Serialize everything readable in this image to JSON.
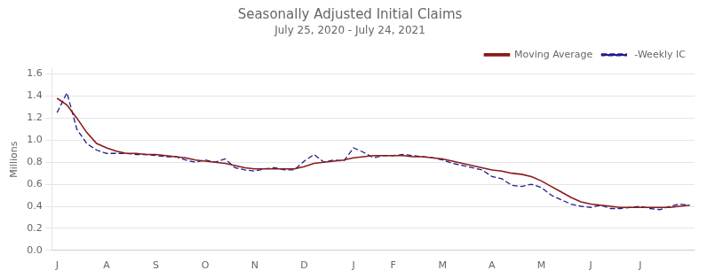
{
  "chart_data": {
    "type": "line",
    "title": "Seasonally Adjusted Initial Claims",
    "subtitle": "July 25, 2020 - July 24, 2021",
    "y_label": "Millions",
    "categories": [
      "J",
      null,
      null,
      null,
      null,
      "A",
      null,
      null,
      null,
      null,
      "S",
      null,
      null,
      null,
      null,
      "O",
      null,
      null,
      null,
      null,
      "N",
      null,
      null,
      null,
      null,
      "D",
      null,
      null,
      null,
      null,
      "J",
      null,
      null,
      null,
      "F",
      null,
      null,
      null,
      null,
      "M",
      null,
      null,
      null,
      null,
      "A",
      null,
      null,
      null,
      null,
      "M",
      null,
      null,
      null,
      null,
      "J",
      null,
      null,
      null,
      null,
      "J",
      null,
      null,
      null,
      null,
      null
    ],
    "series": [
      {
        "name": "Moving Average",
        "color": "#8B1A1A",
        "line_style": "solid",
        "values": [
          1.38,
          1.32,
          1.2,
          1.07,
          0.97,
          0.93,
          0.9,
          0.88,
          0.88,
          0.87,
          0.87,
          0.86,
          0.85,
          0.84,
          0.82,
          0.81,
          0.8,
          0.79,
          0.77,
          0.75,
          0.74,
          0.74,
          0.74,
          0.74,
          0.74,
          0.76,
          0.79,
          0.8,
          0.81,
          0.82,
          0.84,
          0.85,
          0.86,
          0.86,
          0.86,
          0.86,
          0.85,
          0.85,
          0.84,
          0.83,
          0.81,
          0.79,
          0.77,
          0.75,
          0.73,
          0.72,
          0.7,
          0.69,
          0.67,
          0.63,
          0.58,
          0.53,
          0.48,
          0.44,
          0.42,
          0.41,
          0.4,
          0.39,
          0.39,
          0.39,
          0.39,
          0.39,
          0.39,
          0.4,
          0.41
        ]
      },
      {
        "name": " -Weekly IC",
        "color": "#1C1C8C",
        "line_style": "dashed",
        "values": [
          1.25,
          1.43,
          1.1,
          0.97,
          0.91,
          0.88,
          0.88,
          0.88,
          0.87,
          0.87,
          0.86,
          0.85,
          0.85,
          0.82,
          0.8,
          0.82,
          0.8,
          0.83,
          0.75,
          0.73,
          0.72,
          0.74,
          0.75,
          0.73,
          0.73,
          0.81,
          0.87,
          0.8,
          0.82,
          0.81,
          0.93,
          0.89,
          0.84,
          0.86,
          0.86,
          0.87,
          0.86,
          0.85,
          0.84,
          0.82,
          0.79,
          0.77,
          0.75,
          0.73,
          0.67,
          0.65,
          0.59,
          0.58,
          0.6,
          0.57,
          0.5,
          0.46,
          0.42,
          0.4,
          0.39,
          0.41,
          0.38,
          0.38,
          0.39,
          0.4,
          0.38,
          0.37,
          0.4,
          0.42,
          0.41
        ]
      }
    ],
    "ylim": [
      0.0,
      1.65
    ],
    "yticks": [
      {
        "value": 0,
        "label": "0.0"
      },
      0.2,
      0.4,
      0.6,
      0.8,
      {
        "value": 1,
        "label": "1.0"
      },
      1.2,
      1.4,
      1.6
    ],
    "grid": true,
    "legend": "upper right"
  }
}
